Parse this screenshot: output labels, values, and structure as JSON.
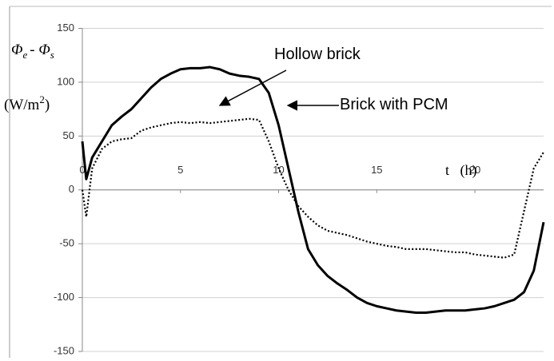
{
  "chart_data": {
    "type": "line",
    "y_label": [
      "Φ",
      "e",
      "- Φ",
      "s"
    ],
    "y_unit": [
      "(W/m",
      "2",
      ")"
    ],
    "x_label": "t   (h)",
    "x": [
      0,
      0.2,
      0.5,
      1,
      1.5,
      2,
      2.5,
      3,
      3.5,
      4,
      4.5,
      5,
      5.5,
      6,
      6.5,
      7,
      7.5,
      8,
      8.5,
      9,
      9.5,
      10,
      10.5,
      11,
      11.5,
      12,
      12.5,
      13,
      13.5,
      14,
      14.5,
      15,
      15.5,
      16,
      16.5,
      17,
      17.5,
      18,
      18.5,
      19,
      19.5,
      20,
      20.5,
      21,
      21.5,
      22,
      22.5,
      23,
      23.5
    ],
    "series": [
      {
        "name": "Brick with PCM",
        "color": "#000000",
        "style": "solid",
        "values": [
          45,
          10,
          30,
          45,
          60,
          68,
          75,
          85,
          95,
          103,
          108,
          112,
          113,
          113,
          114,
          112,
          108,
          106,
          105,
          103,
          90,
          60,
          20,
          -20,
          -55,
          -70,
          -80,
          -87,
          -93,
          -100,
          -105,
          -108,
          -110,
          -112,
          -113,
          -114,
          -114,
          -113,
          -112,
          -112,
          -112,
          -111,
          -110,
          -108,
          -105,
          -102,
          -95,
          -75,
          -30
        ]
      },
      {
        "name": "Hollow brick",
        "color": "#000000",
        "style": "dotted",
        "values": [
          0,
          -25,
          20,
          38,
          45,
          47,
          48,
          55,
          58,
          60,
          62,
          63,
          62,
          63,
          62,
          63,
          64,
          65,
          66,
          65,
          45,
          20,
          0,
          -15,
          -25,
          -33,
          -38,
          -40,
          -42,
          -45,
          -48,
          -50,
          -52,
          -53,
          -55,
          -55,
          -55,
          -56,
          -57,
          -58,
          -58,
          -60,
          -61,
          -62,
          -63,
          -60,
          -20,
          20,
          35
        ]
      }
    ],
    "xlim": [
      0,
      23.5
    ],
    "xticks": [
      0,
      5,
      10,
      15,
      20
    ],
    "ylim": [
      -150,
      150
    ],
    "yticks": [
      -150,
      -100,
      -50,
      0,
      50,
      100,
      150
    ],
    "grid": true
  }
}
